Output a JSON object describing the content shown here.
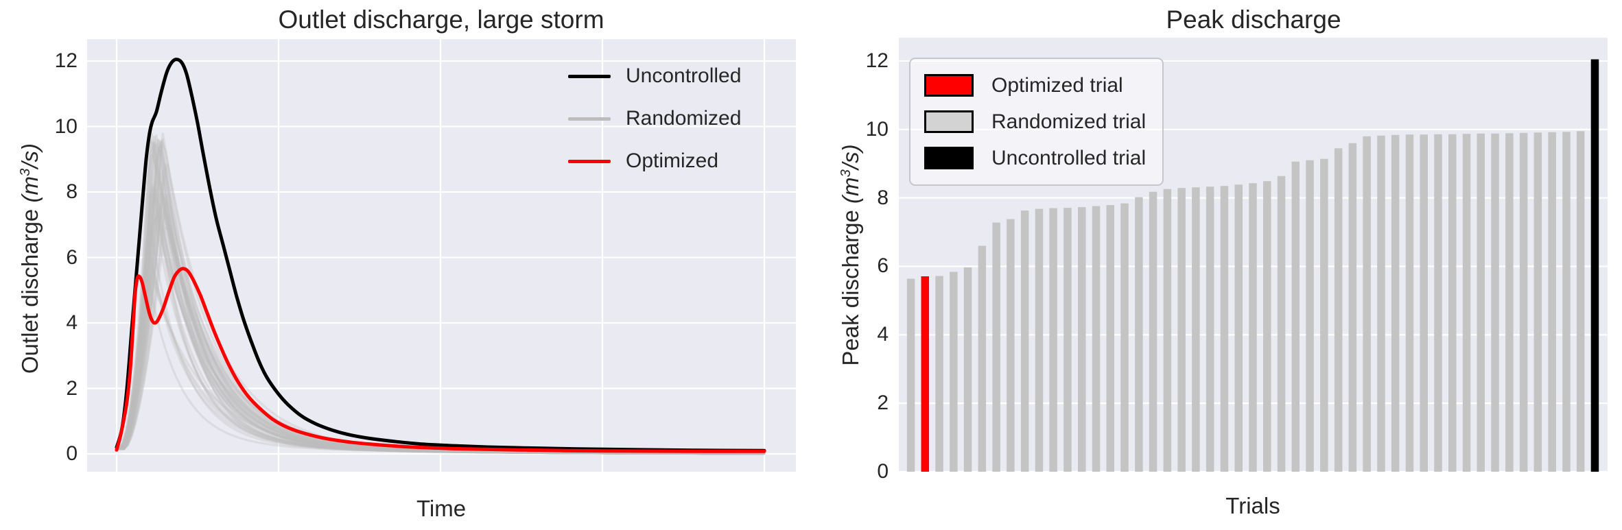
{
  "figure": {
    "background": "#ffffff",
    "axes_background": "#eaeaf2",
    "grid_color": "#ffffff",
    "text_color": "#262626"
  },
  "colors": {
    "uncontrolled": "#000000",
    "optimized": "#ff0000",
    "randomized_line": "#bcbcbc",
    "randomized_bar": "#c4c4c4",
    "randomized_patch": "#d3d3d3"
  },
  "chart_data": [
    {
      "type": "line",
      "title": "Outlet discharge, large storm",
      "xlabel": "Time",
      "ylabel": "Outlet discharge",
      "units": {
        "open": "(",
        "base": "m",
        "exp": "3",
        "rest": "/s",
        "close": ")"
      },
      "yticks": [
        0,
        2,
        4,
        6,
        8,
        10,
        12
      ],
      "ylim": [
        -0.55,
        12.7
      ],
      "xlim": [
        0,
        1
      ],
      "x_gridlines": [
        0,
        0.25,
        0.5,
        0.75,
        1
      ],
      "grid": true,
      "legend_position": "upper right",
      "legend": [
        {
          "label": "Uncontrolled",
          "color": "#000000",
          "kind": "line"
        },
        {
          "label": "Randomized",
          "color": "#bcbcbc",
          "kind": "line"
        },
        {
          "label": "Optimized",
          "color": "#ff0000",
          "kind": "line"
        }
      ],
      "series": [
        {
          "name": "Uncontrolled",
          "color": "#000000",
          "points": [
            [
              0,
              0.2
            ],
            [
              0.0085,
              0.8
            ],
            [
              0.0159,
              2.0
            ],
            [
              0.0233,
              3.8
            ],
            [
              0.0318,
              5.8
            ],
            [
              0.0403,
              7.8
            ],
            [
              0.0456,
              9.0
            ],
            [
              0.0508,
              9.8
            ],
            [
              0.0551,
              10.15
            ],
            [
              0.0614,
              10.45
            ],
            [
              0.0689,
              11.05
            ],
            [
              0.0773,
              11.65
            ],
            [
              0.0847,
              11.95
            ],
            [
              0.0922,
              12.05
            ],
            [
              0.1006,
              11.95
            ],
            [
              0.1081,
              11.6
            ],
            [
              0.1165,
              10.9
            ],
            [
              0.125,
              10.1
            ],
            [
              0.1324,
              9.3
            ],
            [
              0.143,
              8.2
            ],
            [
              0.1536,
              7.2
            ],
            [
              0.1642,
              6.4
            ],
            [
              0.1748,
              5.6
            ],
            [
              0.1854,
              4.8
            ],
            [
              0.196,
              4.1
            ],
            [
              0.2066,
              3.5
            ],
            [
              0.2203,
              2.8
            ],
            [
              0.2331,
              2.3
            ],
            [
              0.249,
              1.85
            ],
            [
              0.2648,
              1.5
            ],
            [
              0.286,
              1.15
            ],
            [
              0.3072,
              0.92
            ],
            [
              0.3337,
              0.72
            ],
            [
              0.3602,
              0.58
            ],
            [
              0.392,
              0.47
            ],
            [
              0.429,
              0.38
            ],
            [
              0.4714,
              0.3
            ],
            [
              0.519,
              0.25
            ],
            [
              0.572,
              0.21
            ],
            [
              0.6356,
              0.18
            ],
            [
              0.7097,
              0.15
            ],
            [
              0.7945,
              0.13
            ],
            [
              0.8898,
              0.11
            ],
            [
              1,
              0.1
            ]
          ]
        },
        {
          "name": "Optimized",
          "color": "#ff0000",
          "points": [
            [
              0,
              0.12
            ],
            [
              0.0053,
              0.5
            ],
            [
              0.0106,
              1.0
            ],
            [
              0.0159,
              1.6
            ],
            [
              0.0212,
              2.6
            ],
            [
              0.0254,
              3.9
            ],
            [
              0.0286,
              4.9
            ],
            [
              0.0318,
              5.35
            ],
            [
              0.035,
              5.42
            ],
            [
              0.0392,
              5.25
            ],
            [
              0.0445,
              4.8
            ],
            [
              0.0498,
              4.35
            ],
            [
              0.054,
              4.1
            ],
            [
              0.0583,
              4.0
            ],
            [
              0.0636,
              4.08
            ],
            [
              0.072,
              4.45
            ],
            [
              0.0805,
              4.95
            ],
            [
              0.089,
              5.4
            ],
            [
              0.0964,
              5.6
            ],
            [
              0.1028,
              5.66
            ],
            [
              0.1102,
              5.58
            ],
            [
              0.1186,
              5.3
            ],
            [
              0.1292,
              4.85
            ],
            [
              0.1398,
              4.3
            ],
            [
              0.1504,
              3.75
            ],
            [
              0.161,
              3.25
            ],
            [
              0.1737,
              2.7
            ],
            [
              0.1875,
              2.2
            ],
            [
              0.2034,
              1.75
            ],
            [
              0.2203,
              1.4
            ],
            [
              0.2415,
              1.05
            ],
            [
              0.2648,
              0.8
            ],
            [
              0.2913,
              0.62
            ],
            [
              0.3231,
              0.47
            ],
            [
              0.3602,
              0.36
            ],
            [
              0.4025,
              0.28
            ],
            [
              0.4555,
              0.21
            ],
            [
              0.519,
              0.16
            ],
            [
              0.5932,
              0.13
            ],
            [
              0.6886,
              0.1
            ],
            [
              0.7945,
              0.085
            ],
            [
              0.9004,
              0.08
            ],
            [
              1,
              0.08
            ]
          ]
        },
        {
          "name": "Randomized",
          "color": "#bcbcbc",
          "note": "bundle of single-peak hydrographs; peak values equal the randomized trial peaks of the bar chart"
        }
      ]
    },
    {
      "type": "bar",
      "title": "Peak discharge",
      "xlabel": "Trials",
      "ylabel": "Peak discharge",
      "units": {
        "open": "(",
        "base": "m",
        "exp": "3",
        "rest": "/s",
        "close": ")"
      },
      "yticks": [
        0,
        2,
        4,
        6,
        8,
        10,
        12
      ],
      "ylim": [
        0,
        12.68
      ],
      "grid": true,
      "legend_position": "upper left",
      "legend": [
        {
          "label": "Optimized trial",
          "color": "#ff0000",
          "kind": "patch"
        },
        {
          "label": "Randomized trial",
          "color": "#d3d3d3",
          "kind": "patch"
        },
        {
          "label": "Uncontrolled trial",
          "color": "#000000",
          "kind": "patch"
        }
      ],
      "trials": [
        {
          "kind": "randomized",
          "value": 5.64
        },
        {
          "kind": "optimized",
          "value": 5.71
        },
        {
          "kind": "randomized",
          "value": 5.72
        },
        {
          "kind": "randomized",
          "value": 5.84
        },
        {
          "kind": "randomized",
          "value": 5.97
        },
        {
          "kind": "randomized",
          "value": 6.6
        },
        {
          "kind": "randomized",
          "value": 7.28
        },
        {
          "kind": "randomized",
          "value": 7.38
        },
        {
          "kind": "randomized",
          "value": 7.63
        },
        {
          "kind": "randomized",
          "value": 7.68
        },
        {
          "kind": "randomized",
          "value": 7.7
        },
        {
          "kind": "randomized",
          "value": 7.71
        },
        {
          "kind": "randomized",
          "value": 7.73
        },
        {
          "kind": "randomized",
          "value": 7.76
        },
        {
          "kind": "randomized",
          "value": 7.79
        },
        {
          "kind": "randomized",
          "value": 7.84
        },
        {
          "kind": "randomized",
          "value": 8.02
        },
        {
          "kind": "randomized",
          "value": 8.18
        },
        {
          "kind": "randomized",
          "value": 8.26
        },
        {
          "kind": "randomized",
          "value": 8.29
        },
        {
          "kind": "randomized",
          "value": 8.31
        },
        {
          "kind": "randomized",
          "value": 8.33
        },
        {
          "kind": "randomized",
          "value": 8.35
        },
        {
          "kind": "randomized",
          "value": 8.39
        },
        {
          "kind": "randomized",
          "value": 8.43
        },
        {
          "kind": "randomized",
          "value": 8.49
        },
        {
          "kind": "randomized",
          "value": 8.64
        },
        {
          "kind": "randomized",
          "value": 9.06
        },
        {
          "kind": "randomized",
          "value": 9.1
        },
        {
          "kind": "randomized",
          "value": 9.14
        },
        {
          "kind": "randomized",
          "value": 9.45
        },
        {
          "kind": "randomized",
          "value": 9.6
        },
        {
          "kind": "randomized",
          "value": 9.8
        },
        {
          "kind": "randomized",
          "value": 9.82
        },
        {
          "kind": "randomized",
          "value": 9.84
        },
        {
          "kind": "randomized",
          "value": 9.85
        },
        {
          "kind": "randomized",
          "value": 9.85
        },
        {
          "kind": "randomized",
          "value": 9.86
        },
        {
          "kind": "randomized",
          "value": 9.86
        },
        {
          "kind": "randomized",
          "value": 9.87
        },
        {
          "kind": "randomized",
          "value": 9.88
        },
        {
          "kind": "randomized",
          "value": 9.88
        },
        {
          "kind": "randomized",
          "value": 9.89
        },
        {
          "kind": "randomized",
          "value": 9.9
        },
        {
          "kind": "randomized",
          "value": 9.91
        },
        {
          "kind": "randomized",
          "value": 9.92
        },
        {
          "kind": "randomized",
          "value": 9.93
        },
        {
          "kind": "randomized",
          "value": 9.95
        },
        {
          "kind": "uncontrolled",
          "value": 12.05
        }
      ]
    }
  ]
}
